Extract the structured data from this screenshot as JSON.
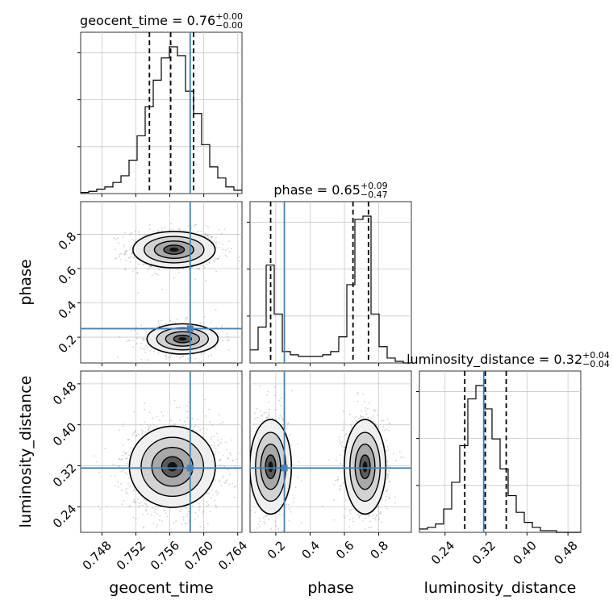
{
  "chart_data": {
    "type": "corner",
    "parameters": [
      {
        "name": "geocent_time",
        "axis_label": "geocent_time",
        "title_main": "geocent_time = 0.76",
        "title_sup": "+0.00",
        "title_sub": "−0.00",
        "range": [
          0.7455,
          0.7645
        ],
        "ticks": [
          "0.748",
          "0.752",
          "0.756",
          "0.760",
          "0.764"
        ],
        "tick_values": [
          0.748,
          0.752,
          0.756,
          0.76,
          0.764
        ],
        "truth": 0.7584,
        "quantiles": [
          0.7536,
          0.7561,
          0.7588
        ],
        "histogram": {
          "edges_start": 0.7455,
          "bin_width": 0.00095,
          "counts": [
            1,
            2,
            4,
            6,
            10,
            16,
            30,
            52,
            78,
            102,
            122,
            132,
            124,
            92,
            72,
            44,
            24,
            14,
            6,
            3
          ]
        }
      },
      {
        "name": "phase",
        "axis_label": "phase",
        "title_main": "phase = 0.65",
        "title_sup": "+0.09",
        "title_sub": "−0.47",
        "range": [
          0.05,
          0.99
        ],
        "ticks": [
          "0.2",
          "0.4",
          "0.6",
          "0.8"
        ],
        "tick_values": [
          0.2,
          0.4,
          0.6,
          0.8
        ],
        "truth": 0.25,
        "quantiles": [
          0.17,
          0.65,
          0.74
        ],
        "histogram": {
          "edges_start": 0.05,
          "bin_width": 0.047,
          "counts": [
            8,
            22,
            60,
            30,
            7,
            5,
            4,
            4,
            4,
            5,
            7,
            16,
            48,
            88,
            90,
            30,
            10,
            3,
            1,
            0
          ]
        }
      },
      {
        "name": "luminosity_distance",
        "axis_label": "luminosity_distance",
        "title_main": "luminosity_distance = 0.32",
        "title_sup": "+0.04",
        "title_sub": "−0.04",
        "range": [
          0.19,
          0.505
        ],
        "ticks": [
          "0.24",
          "0.32",
          "0.40",
          "0.48"
        ],
        "tick_values": [
          0.24,
          0.32,
          0.4,
          0.48
        ],
        "truth": 0.3155,
        "quantiles": [
          0.2785,
          0.3185,
          0.3595
        ],
        "histogram": {
          "edges_start": 0.19,
          "bin_width": 0.01575,
          "counts": [
            2,
            3,
            5,
            14,
            30,
            52,
            80,
            88,
            74,
            56,
            38,
            22,
            12,
            6,
            3,
            1,
            1,
            0,
            0,
            0
          ]
        }
      }
    ],
    "pairs": [
      {
        "x": "geocent_time",
        "y": "phase",
        "clusters": [
          {
            "mean": [
              0.7565,
              0.71
            ],
            "sd": [
              0.0022,
              0.048
            ],
            "weight": 0.58
          },
          {
            "mean": [
              0.7575,
              0.19
            ],
            "sd": [
              0.0019,
              0.04
            ],
            "weight": 0.42
          }
        ]
      },
      {
        "x": "geocent_time",
        "y": "luminosity_distance",
        "clusters": [
          {
            "mean": [
              0.7563,
              0.318
            ],
            "sd": [
              0.0023,
              0.036
            ],
            "weight": 1.0
          }
        ]
      },
      {
        "x": "phase",
        "y": "luminosity_distance",
        "clusters": [
          {
            "mean": [
              0.17,
              0.318
            ],
            "sd": [
              0.055,
              0.042
            ],
            "weight": 0.42
          },
          {
            "mean": [
              0.72,
              0.318
            ],
            "sd": [
              0.055,
              0.042
            ],
            "weight": 0.58
          }
        ]
      }
    ],
    "colors": {
      "truth": "#4682b4",
      "hist": "#000000",
      "quantile": "#000000",
      "grid": "#c8c8c8"
    },
    "grid": true
  }
}
